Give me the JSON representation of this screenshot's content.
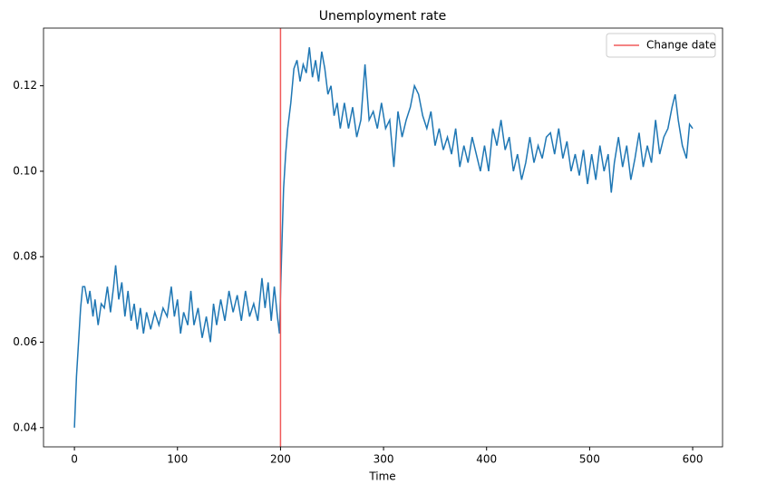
{
  "chart_data": {
    "type": "line",
    "title": "Unemployment rate",
    "x_label": "Time",
    "x": [
      0,
      2,
      4,
      6,
      8,
      10,
      13,
      15,
      18,
      20,
      23,
      26,
      29,
      32,
      35,
      38,
      40,
      43,
      46,
      49,
      52,
      55,
      58,
      61,
      64,
      67,
      70,
      74,
      78,
      82,
      86,
      90,
      94,
      97,
      100,
      103,
      106,
      110,
      113,
      116,
      120,
      124,
      128,
      132,
      135,
      138,
      142,
      146,
      150,
      154,
      158,
      162,
      166,
      170,
      174,
      178,
      182,
      185,
      188,
      191,
      194,
      197,
      199,
      201,
      203,
      205,
      207,
      210,
      213,
      216,
      219,
      222,
      225,
      228,
      231,
      234,
      237,
      240,
      243,
      246,
      249,
      252,
      255,
      258,
      262,
      266,
      270,
      274,
      278,
      282,
      286,
      290,
      294,
      298,
      302,
      306,
      310,
      314,
      318,
      322,
      326,
      330,
      334,
      338,
      342,
      346,
      350,
      354,
      358,
      362,
      366,
      370,
      374,
      378,
      382,
      386,
      390,
      394,
      398,
      402,
      406,
      410,
      414,
      418,
      422,
      426,
      430,
      434,
      438,
      442,
      446,
      450,
      454,
      458,
      462,
      466,
      470,
      474,
      478,
      482,
      486,
      490,
      494,
      498,
      502,
      506,
      510,
      514,
      518,
      521,
      524,
      528,
      532,
      536,
      540,
      544,
      548,
      552,
      556,
      560,
      564,
      568,
      572,
      576,
      580,
      583,
      586,
      590,
      594,
      597,
      600
    ],
    "values": [
      0.04,
      0.052,
      0.06,
      0.068,
      0.073,
      0.073,
      0.069,
      0.072,
      0.066,
      0.07,
      0.064,
      0.069,
      0.068,
      0.073,
      0.067,
      0.073,
      0.078,
      0.07,
      0.074,
      0.066,
      0.072,
      0.065,
      0.069,
      0.063,
      0.068,
      0.062,
      0.067,
      0.063,
      0.067,
      0.064,
      0.068,
      0.066,
      0.073,
      0.066,
      0.07,
      0.062,
      0.067,
      0.064,
      0.072,
      0.064,
      0.068,
      0.061,
      0.066,
      0.06,
      0.069,
      0.064,
      0.07,
      0.065,
      0.072,
      0.067,
      0.071,
      0.065,
      0.072,
      0.066,
      0.069,
      0.065,
      0.075,
      0.068,
      0.074,
      0.065,
      0.073,
      0.066,
      0.062,
      0.08,
      0.096,
      0.104,
      0.11,
      0.116,
      0.124,
      0.126,
      0.121,
      0.125,
      0.123,
      0.129,
      0.122,
      0.126,
      0.121,
      0.128,
      0.124,
      0.118,
      0.12,
      0.113,
      0.116,
      0.11,
      0.116,
      0.11,
      0.115,
      0.108,
      0.112,
      0.125,
      0.112,
      0.114,
      0.11,
      0.116,
      0.11,
      0.112,
      0.101,
      0.114,
      0.108,
      0.112,
      0.115,
      0.12,
      0.118,
      0.113,
      0.11,
      0.114,
      0.106,
      0.11,
      0.105,
      0.108,
      0.104,
      0.11,
      0.101,
      0.106,
      0.102,
      0.108,
      0.104,
      0.1,
      0.106,
      0.1,
      0.11,
      0.106,
      0.112,
      0.105,
      0.108,
      0.1,
      0.104,
      0.098,
      0.102,
      0.108,
      0.102,
      0.106,
      0.103,
      0.108,
      0.109,
      0.104,
      0.11,
      0.103,
      0.107,
      0.1,
      0.104,
      0.099,
      0.105,
      0.097,
      0.104,
      0.098,
      0.106,
      0.1,
      0.104,
      0.095,
      0.102,
      0.108,
      0.101,
      0.106,
      0.098,
      0.103,
      0.109,
      0.101,
      0.106,
      0.102,
      0.112,
      0.104,
      0.108,
      0.11,
      0.115,
      0.118,
      0.112,
      0.106,
      0.103,
      0.111,
      0.11
    ],
    "color": "#1f77b4",
    "vlines": [
      {
        "name": "Change date",
        "x": 200,
        "color": "#f05a5a"
      }
    ],
    "xlim": [
      -30,
      629
    ],
    "xticks": [
      0,
      100,
      200,
      300,
      400,
      500,
      600
    ],
    "ylim": [
      0.0355,
      0.1335
    ],
    "yticks": [
      0.04,
      0.06,
      0.08,
      {
        "value": 0.1,
        "label": "0.10"
      },
      0.12
    ],
    "legend": "upper right"
  }
}
